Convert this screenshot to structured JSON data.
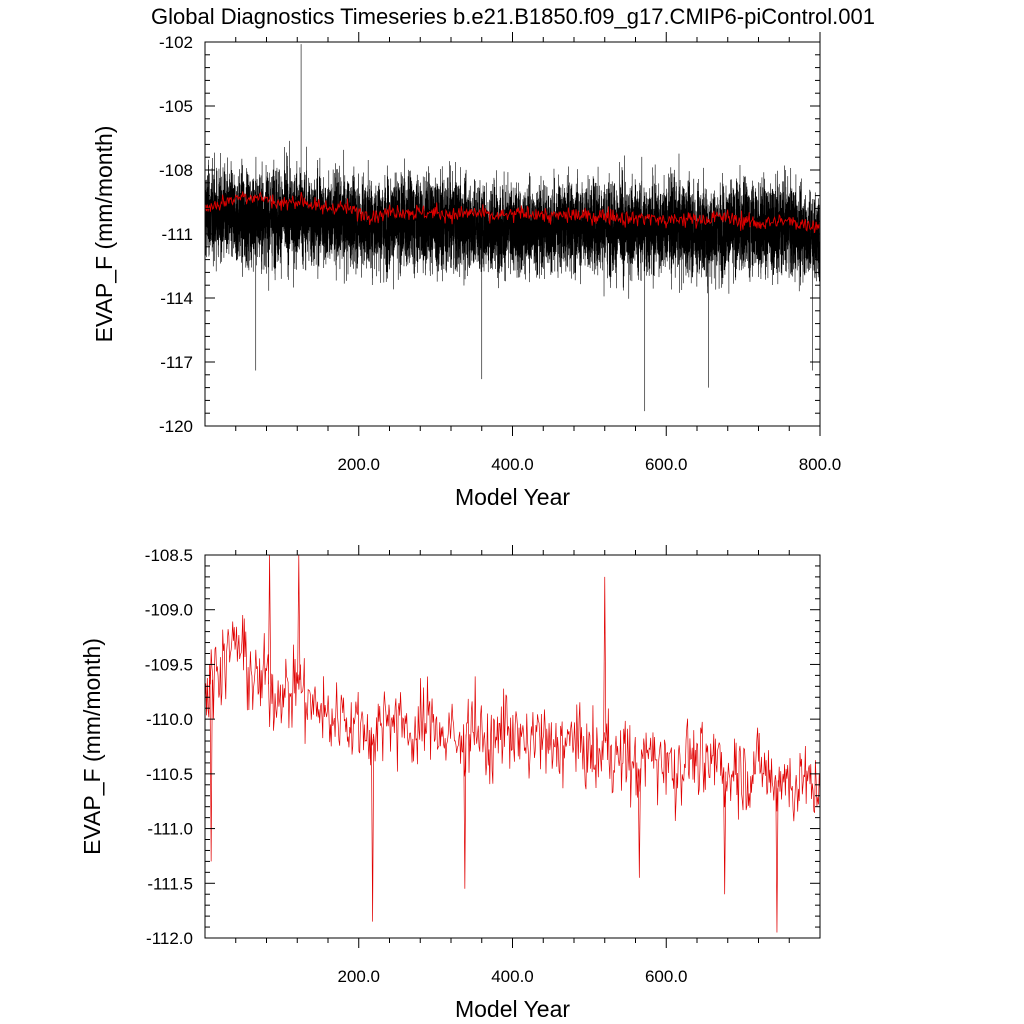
{
  "title": "Global Diagnostics Timeseries b.e21.B1850.f09_g17.CMIP6-piControl.001",
  "colors": {
    "monthly": "#000000",
    "annual": "#e00000",
    "frame": "#000000"
  },
  "chart_data": [
    {
      "type": "line",
      "xlabel": "Model Year",
      "ylabel": "EVAP_F (mm/month)",
      "xlim": [
        0,
        800
      ],
      "ylim": [
        -120,
        -102
      ],
      "xticks": [
        200,
        400,
        600,
        800
      ],
      "xtick_labels": [
        "200.0",
        "400.0",
        "600.0",
        "800.0"
      ],
      "yticks": [
        -120,
        -117,
        -114,
        -111,
        -108,
        -105,
        -102
      ],
      "ytick_labels": [
        "-120",
        "-117",
        "-114",
        "-111",
        "-108",
        "-105",
        "-102"
      ],
      "grid": false,
      "series": [
        {
          "description": "monthly global mean",
          "color": "#000000",
          "envelope": {
            "x": [
              0,
              50,
              100,
              150,
              200,
              250,
              300,
              350,
              400,
              450,
              500,
              550,
              600,
              650,
              700,
              750,
              800
            ],
            "upper": [
              -105.5,
              -105.5,
              -105.2,
              -105.6,
              -106.0,
              -105.7,
              -105.6,
              -106.0,
              -106.2,
              -106.3,
              -106.0,
              -106.0,
              -105.8,
              -106.3,
              -106.0,
              -105.9,
              -106.8
            ],
            "lower": [
              -114.5,
              -115.0,
              -115.0,
              -115.0,
              -115.0,
              -115.3,
              -115.2,
              -115.2,
              -115.3,
              -115.0,
              -115.0,
              -115.5,
              -115.5,
              -115.5,
              -115.4,
              -115.3,
              -115.6
            ]
          },
          "extremes": [
            {
              "x": 125,
              "y": -102.1
            },
            {
              "x": 572,
              "y": -119.3
            },
            {
              "x": 66,
              "y": -117.4
            },
            {
              "x": 360,
              "y": -117.8
            },
            {
              "x": 655,
              "y": -118.2
            },
            {
              "x": 790,
              "y": -117.4
            }
          ]
        },
        {
          "description": "annual global mean",
          "color": "#e00000",
          "x": [
            0,
            25,
            50,
            75,
            100,
            125,
            150,
            175,
            200,
            225,
            250,
            275,
            300,
            325,
            350,
            375,
            400,
            425,
            450,
            475,
            500,
            525,
            550,
            575,
            600,
            625,
            650,
            675,
            700,
            725,
            750,
            775,
            800
          ],
          "values": [
            -109.8,
            -109.5,
            -109.2,
            -109.3,
            -109.6,
            -109.4,
            -109.8,
            -109.7,
            -110.0,
            -110.1,
            -109.9,
            -110.0,
            -110.0,
            -110.1,
            -110.0,
            -110.2,
            -110.1,
            -110.0,
            -110.2,
            -110.1,
            -110.2,
            -110.1,
            -110.3,
            -110.2,
            -110.4,
            -110.3,
            -110.3,
            -110.2,
            -110.4,
            -110.5,
            -110.4,
            -110.5,
            -110.6
          ]
        }
      ]
    },
    {
      "type": "line",
      "xlabel": "Model Year",
      "ylabel": "EVAP_F (mm/month)",
      "xlim": [
        0,
        800
      ],
      "ylim": [
        -112.0,
        -108.5
      ],
      "xticks": [
        200,
        400,
        600
      ],
      "xtick_labels": [
        "200.0",
        "400.0",
        "600.0"
      ],
      "yticks": [
        -112.0,
        -111.5,
        -111.0,
        -110.5,
        -110.0,
        -109.5,
        -109.0,
        -108.5
      ],
      "ytick_labels": [
        "-112.0",
        "-111.5",
        "-111.0",
        "-110.5",
        "-110.0",
        "-109.5",
        "-109.0",
        "-108.5"
      ],
      "grid": false,
      "series": [
        {
          "description": "annual global mean",
          "color": "#e00000",
          "x": [
            0,
            10,
            20,
            30,
            40,
            50,
            60,
            70,
            80,
            90,
            100,
            110,
            120,
            130,
            140,
            150,
            160,
            170,
            180,
            190,
            200,
            210,
            220,
            230,
            240,
            250,
            260,
            270,
            280,
            290,
            300,
            310,
            320,
            330,
            340,
            350,
            360,
            370,
            380,
            390,
            400,
            410,
            420,
            430,
            440,
            450,
            460,
            470,
            480,
            490,
            500,
            510,
            520,
            530,
            540,
            550,
            560,
            570,
            580,
            590,
            600,
            610,
            620,
            630,
            640,
            650,
            660,
            670,
            680,
            690,
            700,
            710,
            720,
            730,
            740,
            750,
            760,
            770,
            780,
            790,
            799
          ],
          "values": [
            -109.8,
            -109.6,
            -109.5,
            -109.4,
            -109.3,
            -109.4,
            -109.6,
            -109.7,
            -109.6,
            -109.8,
            -109.7,
            -109.8,
            -109.6,
            -109.8,
            -109.9,
            -109.9,
            -110.0,
            -110.0,
            -109.9,
            -110.1,
            -110.0,
            -110.1,
            -110.2,
            -110.0,
            -109.9,
            -110.1,
            -110.0,
            -110.2,
            -110.1,
            -110.0,
            -110.0,
            -110.2,
            -110.1,
            -110.3,
            -110.1,
            -110.0,
            -110.2,
            -110.3,
            -110.2,
            -110.0,
            -110.1,
            -110.2,
            -110.3,
            -110.1,
            -110.2,
            -110.3,
            -110.2,
            -110.3,
            -110.1,
            -110.3,
            -110.3,
            -110.4,
            -110.2,
            -110.3,
            -110.4,
            -110.3,
            -110.5,
            -110.4,
            -110.3,
            -110.4,
            -110.3,
            -110.5,
            -110.4,
            -110.3,
            -110.4,
            -110.5,
            -110.4,
            -110.3,
            -110.6,
            -110.4,
            -110.5,
            -110.5,
            -110.4,
            -110.5,
            -110.6,
            -110.5,
            -110.6,
            -110.6,
            -110.5,
            -110.7,
            -110.6
          ],
          "extremes": [
            {
              "x": 84,
              "y": -108.5
            },
            {
              "x": 122,
              "y": -108.5
            },
            {
              "x": 8,
              "y": -111.3
            },
            {
              "x": 218,
              "y": -111.85
            },
            {
              "x": 338,
              "y": -111.55
            },
            {
              "x": 520,
              "y": -108.7
            },
            {
              "x": 744,
              "y": -111.95
            },
            {
              "x": 676,
              "y": -111.6
            },
            {
              "x": 565,
              "y": -111.45
            }
          ]
        }
      ]
    }
  ]
}
